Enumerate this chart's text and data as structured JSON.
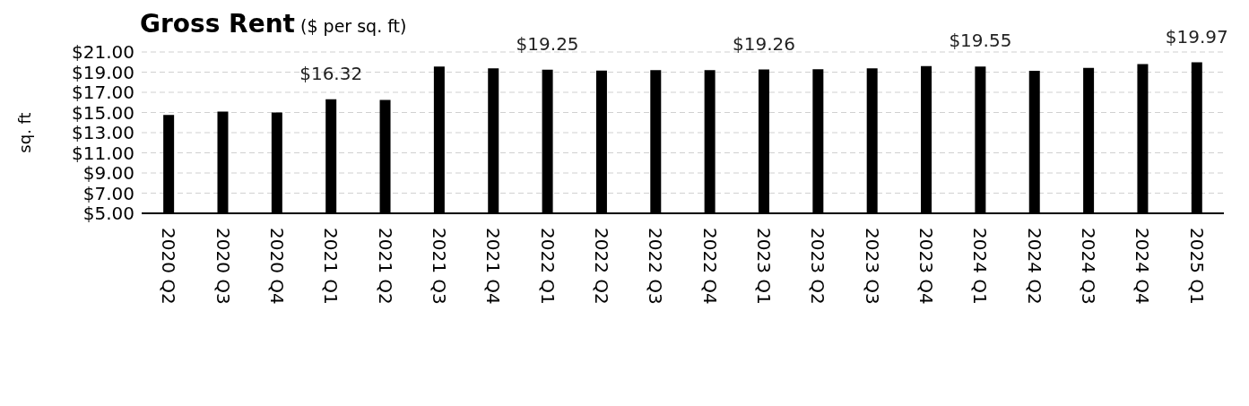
{
  "chart_data": {
    "type": "bar",
    "title": "Gross Rent",
    "subtitle": "($ per sq. ft)",
    "ylabel": "sq. ft",
    "categories": [
      "2020 Q2",
      "2020 Q3",
      "2020 Q4",
      "2021 Q1",
      "2021 Q2",
      "2021 Q3",
      "2021 Q4",
      "2022 Q1",
      "2022 Q2",
      "2022 Q3",
      "2022 Q4",
      "2023 Q1",
      "2023 Q2",
      "2023 Q3",
      "2023 Q4",
      "2024 Q1",
      "2024 Q2",
      "2024 Q3",
      "2024 Q4",
      "2025 Q1"
    ],
    "values": [
      14.75,
      15.08,
      15.0,
      16.32,
      16.25,
      19.56,
      19.38,
      19.25,
      19.16,
      19.19,
      19.19,
      19.26,
      19.3,
      19.38,
      19.59,
      19.55,
      19.14,
      19.43,
      19.8,
      19.97
    ],
    "value_labels": [
      null,
      null,
      null,
      "$16.32",
      null,
      null,
      null,
      "$19.25",
      null,
      null,
      null,
      "$19.26",
      null,
      null,
      null,
      "$19.55",
      null,
      null,
      null,
      "$19.97"
    ],
    "color": "#000000",
    "ylim": [
      5,
      21
    ],
    "yticks": [
      {
        "value": 5,
        "label": "$5.00"
      },
      {
        "value": 7,
        "label": "$7.00"
      },
      {
        "value": 9,
        "label": "$9.00"
      },
      {
        "value": 11,
        "label": "$11.00"
      },
      {
        "value": 13,
        "label": "$13.00"
      },
      {
        "value": 15,
        "label": "$15.00"
      },
      {
        "value": 17,
        "label": "$17.00"
      },
      {
        "value": 19,
        "label": "$19.00"
      },
      {
        "value": 21,
        "label": "$21.00"
      }
    ],
    "grid": "y"
  }
}
